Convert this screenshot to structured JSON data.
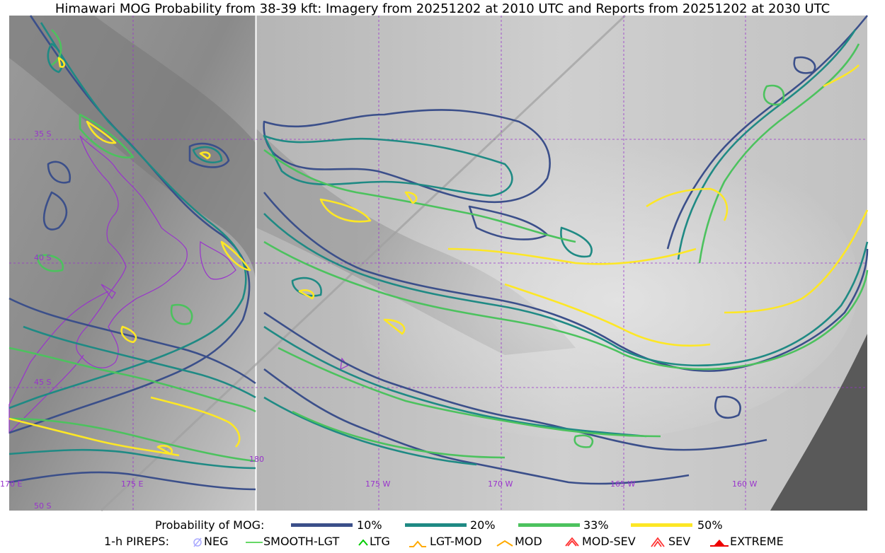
{
  "title": "Himawari MOG Probability from 38-39 kft: Imagery from 20251202 at 2010 UTC and Reports from 20251202 at 2030 UTC",
  "map": {
    "lat_labels": [
      "35 S",
      "40 S",
      "45 S",
      "50 S"
    ],
    "lon_labels": [
      "170 E",
      "175 E",
      "180",
      "175 W",
      "170 W",
      "165 W",
      "160 W"
    ],
    "grid_color": "#9933cc",
    "coast_color": "#9933cc"
  },
  "legend": {
    "probability_label": "Probability of MOG:",
    "levels": [
      {
        "label": "10%",
        "color": "#3b4f8a"
      },
      {
        "label": "20%",
        "color": "#1f8a84"
      },
      {
        "label": "33%",
        "color": "#4cc25e"
      },
      {
        "label": "50%",
        "color": "#fde725"
      }
    ],
    "pireps_label": "1-h PIREPS:",
    "pireps": [
      {
        "label": "NEG",
        "icon": "neg-icon",
        "color": "#aaaaff"
      },
      {
        "label": "SMOOTH-LGT",
        "icon": "smooth-lgt-icon",
        "color": "#33cc33"
      },
      {
        "label": "LTG",
        "icon": "ltg-icon",
        "color": "#00cc00"
      },
      {
        "label": "LGT-MOD",
        "icon": "lgt-mod-icon",
        "color": "#ffaa00"
      },
      {
        "label": "MOD",
        "icon": "mod-icon",
        "color": "#ffaa00"
      },
      {
        "label": "MOD-SEV",
        "icon": "mod-sev-icon",
        "color": "#ff3333"
      },
      {
        "label": "SEV",
        "icon": "sev-icon",
        "color": "#ff3333"
      },
      {
        "label": "EXTREME",
        "icon": "extreme-icon",
        "color": "#ee0000"
      }
    ]
  }
}
